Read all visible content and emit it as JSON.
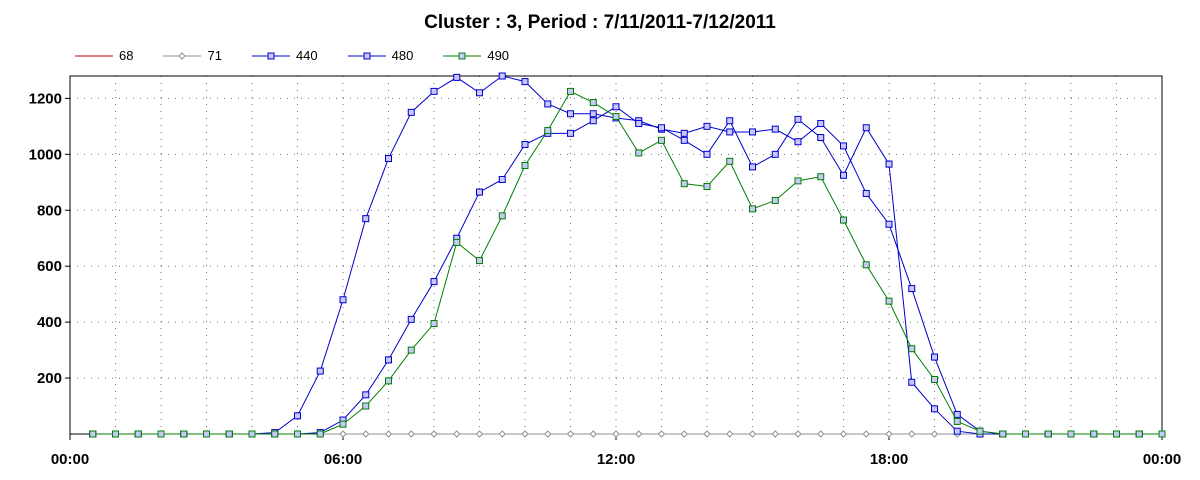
{
  "chart_data": {
    "type": "line",
    "title": "Cluster : 3, Period : 7/11/2011-7/12/2011",
    "xlabel": "",
    "ylabel": "",
    "xlim": [
      0,
      24
    ],
    "ylim": [
      0,
      1280
    ],
    "grid": true,
    "legend_position": "top-left",
    "x_tick_labels": [
      "00:00",
      "06:00",
      "12:00",
      "18:00",
      "00:00"
    ],
    "x_ticks": [
      0,
      6,
      12,
      18,
      24
    ],
    "y_ticks": [
      200,
      400,
      600,
      800,
      1000,
      1200
    ],
    "x": [
      0.5,
      1,
      1.5,
      2,
      2.5,
      3,
      3.5,
      4,
      4.5,
      5,
      5.5,
      6,
      6.5,
      7,
      7.5,
      8,
      8.5,
      9,
      9.5,
      10,
      10.5,
      11,
      11.5,
      12,
      12.5,
      13,
      13.5,
      14,
      14.5,
      15,
      15.5,
      16,
      16.5,
      17,
      17.5,
      18,
      18.5,
      19,
      19.5,
      20,
      20.5,
      21,
      21.5,
      22,
      22.5,
      23,
      23.5,
      24
    ],
    "series": [
      {
        "name": "68",
        "color": "#c00000",
        "marker": "none",
        "values": [
          0,
          0,
          0,
          0,
          0,
          0,
          0,
          0,
          0,
          0,
          0,
          0,
          0,
          0,
          0,
          0,
          0,
          0,
          0,
          0,
          0,
          0,
          0,
          0,
          0,
          0,
          0,
          0,
          0,
          0,
          0,
          0,
          0,
          0,
          0,
          0,
          0,
          0,
          0,
          0,
          0,
          0,
          0,
          0,
          0,
          0,
          0,
          0
        ]
      },
      {
        "name": "71",
        "color": "#909090",
        "marker": "diamond",
        "values": [
          0,
          0,
          0,
          0,
          0,
          0,
          0,
          0,
          0,
          0,
          0,
          0,
          0,
          0,
          0,
          0,
          0,
          0,
          0,
          0,
          0,
          0,
          0,
          0,
          0,
          0,
          0,
          0,
          0,
          0,
          0,
          0,
          0,
          0,
          0,
          0,
          0,
          0,
          0,
          0,
          0,
          0,
          0,
          0,
          0,
          0,
          0,
          0
        ]
      },
      {
        "name": "440",
        "color": "#0000cc",
        "marker": "square",
        "values": [
          0,
          0,
          0,
          0,
          0,
          0,
          0,
          0,
          5,
          65,
          225,
          480,
          770,
          985,
          1150,
          1225,
          1275,
          1220,
          1280,
          1260,
          1180,
          1145,
          1145,
          1130,
          1120,
          1090,
          1075,
          1100,
          1080,
          1080,
          1090,
          1045,
          1110,
          1030,
          860,
          750,
          520,
          275,
          70,
          10,
          0,
          0,
          0,
          0,
          0,
          0,
          0,
          0
        ]
      },
      {
        "name": "480",
        "color": "#0000cc",
        "marker": "square",
        "values": [
          0,
          0,
          0,
          0,
          0,
          0,
          0,
          0,
          0,
          0,
          5,
          50,
          140,
          265,
          410,
          545,
          700,
          865,
          910,
          1035,
          1075,
          1075,
          1120,
          1170,
          1110,
          1095,
          1050,
          1000,
          1120,
          955,
          1000,
          1125,
          1060,
          925,
          1095,
          965,
          185,
          90,
          10,
          0,
          0,
          0,
          0,
          0,
          0,
          0,
          0,
          0
        ]
      },
      {
        "name": "490",
        "color": "#008000",
        "marker": "square",
        "values": [
          0,
          0,
          0,
          0,
          0,
          0,
          0,
          0,
          0,
          0,
          0,
          35,
          100,
          190,
          300,
          395,
          685,
          620,
          780,
          960,
          1085,
          1225,
          1185,
          1135,
          1005,
          1050,
          895,
          885,
          975,
          805,
          835,
          905,
          920,
          765,
          605,
          475,
          305,
          195,
          45,
          10,
          0,
          0,
          0,
          0,
          0,
          0,
          0,
          0
        ]
      }
    ]
  }
}
